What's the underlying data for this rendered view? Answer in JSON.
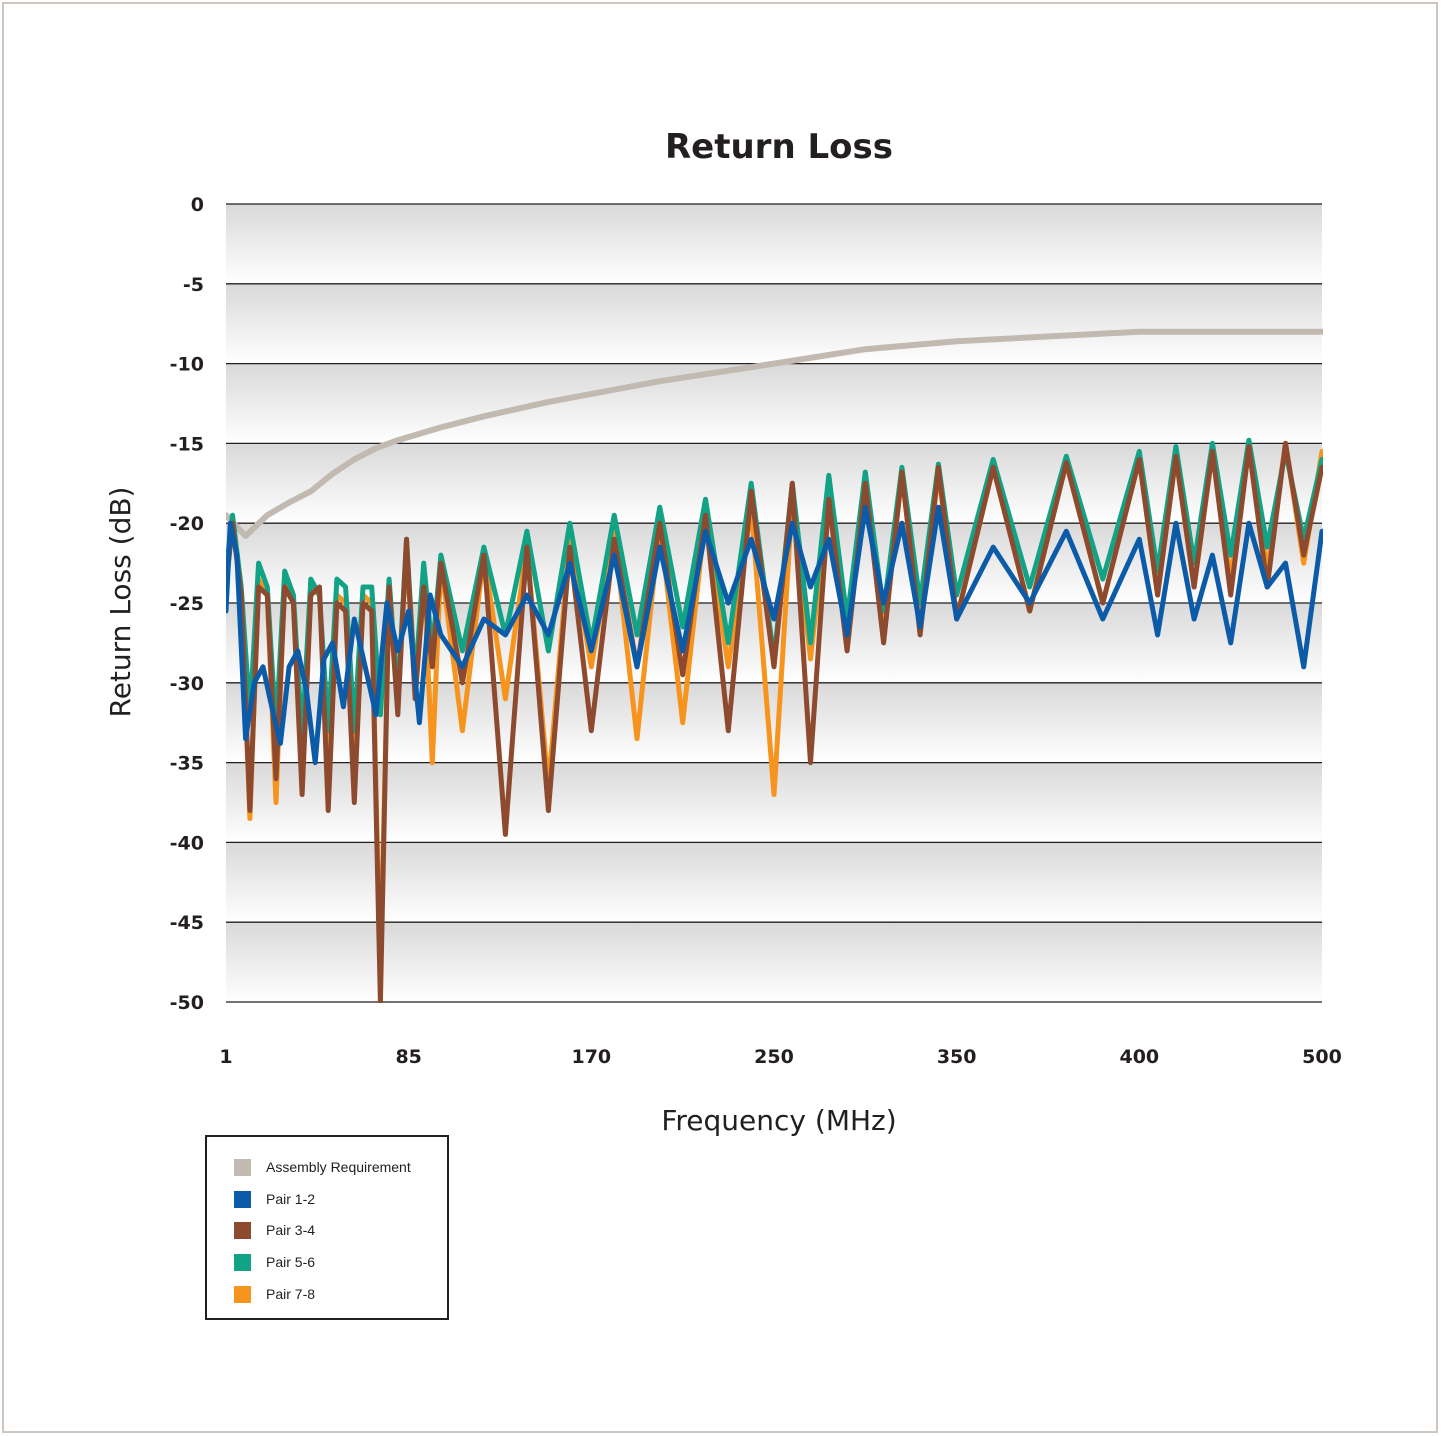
{
  "chart_data": {
    "type": "line",
    "title": "Return Loss",
    "xlabel": "Frequency (MHz)",
    "ylabel": "Return Loss (dB)",
    "x_ticks": [
      "1",
      "85",
      "170",
      "250",
      "350",
      "400",
      "500"
    ],
    "y_ticks": [
      "0",
      "-5",
      "-10",
      "-15",
      "-20",
      "-25",
      "-30",
      "-35",
      "-40",
      "-45",
      "-50"
    ],
    "ylim": [
      -50,
      0
    ],
    "xlim": [
      1,
      500
    ],
    "grid": true,
    "legend_position": "bottom-left",
    "series": [
      {
        "name": "Assembly Requirement",
        "color": "#c2bab1",
        "x": [
          1,
          10,
          20,
          30,
          40,
          50,
          60,
          70,
          80,
          100,
          120,
          150,
          200,
          250,
          300,
          350,
          400,
          500
        ],
        "y": [
          -19.5,
          -20.8,
          -19.5,
          -18.7,
          -18.0,
          -16.9,
          -16.0,
          -15.3,
          -14.8,
          -14.0,
          -13.3,
          -12.4,
          -11.1,
          -10.0,
          -9.1,
          -8.6,
          -8.0,
          -8.0
        ]
      },
      {
        "name": "Pair 1-2",
        "color": "#0b5ba8",
        "x": [
          1,
          3,
          6,
          10,
          14,
          18,
          22,
          26,
          30,
          34,
          38,
          42,
          46,
          50,
          55,
          60,
          65,
          70,
          75,
          80,
          85,
          90,
          95,
          100,
          110,
          120,
          130,
          140,
          150,
          160,
          170,
          180,
          190,
          200,
          210,
          220,
          230,
          240,
          250,
          260,
          270,
          280,
          290,
          300,
          310,
          320,
          330,
          340,
          350,
          360,
          370,
          380,
          390,
          400,
          410,
          420,
          430,
          440,
          450,
          460,
          470,
          480,
          490,
          500
        ],
        "y": [
          -25.5,
          -20.0,
          -22.0,
          -33.5,
          -30.0,
          -29.0,
          -31.5,
          -33.8,
          -29.0,
          -28.0,
          -30.5,
          -35.0,
          -28.5,
          -27.5,
          -31.5,
          -26.0,
          -29.0,
          -32.0,
          -25.0,
          -28.0,
          -25.5,
          -32.5,
          -24.5,
          -27.0,
          -29.0,
          -26.0,
          -27.0,
          -24.5,
          -27.0,
          -22.5,
          -28.0,
          -22.0,
          -29.0,
          -21.5,
          -28.0,
          -20.5,
          -25.0,
          -21.0,
          -26.0,
          -20.0,
          -24.0,
          -21.0,
          -27.0,
          -19.0,
          -25.0,
          -20.0,
          -26.5,
          -19.0,
          -26.0,
          -21.5,
          -25.0,
          -20.5,
          -26.0,
          -21.0,
          -27.0,
          -20.0,
          -26.0,
          -22.0,
          -27.5,
          -20.0,
          -24.0,
          -22.5,
          -29.0,
          -20.5
        ]
      },
      {
        "name": "Pair 3-4",
        "color": "#8e4a2e",
        "x": [
          1,
          4,
          8,
          12,
          16,
          20,
          24,
          28,
          32,
          36,
          40,
          44,
          48,
          52,
          56,
          60,
          64,
          68,
          72,
          76,
          80,
          84,
          88,
          92,
          96,
          100,
          110,
          120,
          130,
          140,
          150,
          160,
          170,
          180,
          190,
          200,
          210,
          220,
          230,
          240,
          250,
          260,
          270,
          280,
          290,
          300,
          310,
          320,
          330,
          340,
          350,
          360,
          370,
          380,
          390,
          400,
          410,
          420,
          430,
          440,
          450,
          460,
          470,
          480,
          490,
          500
        ],
        "y": [
          -24.0,
          -20.0,
          -24.5,
          -38.0,
          -24.0,
          -24.5,
          -36.0,
          -24.0,
          -25.0,
          -37.0,
          -24.5,
          -24.0,
          -38.0,
          -25.0,
          -25.5,
          -37.5,
          -25.0,
          -25.5,
          -50.0,
          -24.0,
          -32.0,
          -21.0,
          -31.0,
          -24.0,
          -29.0,
          -22.5,
          -30.0,
          -22.0,
          -39.5,
          -21.5,
          -38.0,
          -21.5,
          -33.0,
          -21.0,
          -29.0,
          -20.0,
          -29.5,
          -19.5,
          -33.0,
          -18.0,
          -29.0,
          -17.5,
          -35.0,
          -18.5,
          -28.0,
          -17.5,
          -27.5,
          -16.8,
          -27.0,
          -16.5,
          -26.0,
          -16.5,
          -25.5,
          -16.2,
          -25.0,
          -16.0,
          -24.5,
          -15.8,
          -24.0,
          -15.5,
          -24.5,
          -15.2,
          -24.0,
          -15.0,
          -22.0,
          -16.5
        ]
      },
      {
        "name": "Pair 5-6",
        "color": "#12a286",
        "x": [
          1,
          4,
          8,
          12,
          16,
          20,
          24,
          28,
          32,
          36,
          40,
          44,
          48,
          52,
          56,
          60,
          64,
          68,
          72,
          76,
          80,
          84,
          88,
          92,
          96,
          100,
          110,
          120,
          130,
          140,
          150,
          160,
          170,
          180,
          190,
          200,
          210,
          220,
          230,
          240,
          250,
          260,
          270,
          280,
          290,
          300,
          310,
          320,
          330,
          340,
          350,
          360,
          370,
          380,
          390,
          400,
          410,
          420,
          430,
          440,
          450,
          460,
          470,
          480,
          490,
          500
        ],
        "y": [
          -23.0,
          -19.5,
          -24.0,
          -32.0,
          -22.5,
          -24.0,
          -33.0,
          -23.0,
          -24.5,
          -33.5,
          -23.5,
          -24.5,
          -33.0,
          -23.5,
          -24.0,
          -33.0,
          -24.0,
          -24.0,
          -32.0,
          -23.5,
          -31.0,
          -21.0,
          -30.0,
          -22.5,
          -28.0,
          -22.0,
          -28.0,
          -21.5,
          -27.0,
          -20.5,
          -28.0,
          -20.0,
          -27.5,
          -19.5,
          -27.0,
          -19.0,
          -26.5,
          -18.5,
          -27.5,
          -17.5,
          -28.5,
          -17.5,
          -27.5,
          -17.0,
          -26.0,
          -16.8,
          -25.5,
          -16.5,
          -25.0,
          -16.3,
          -24.5,
          -16.0,
          -24.0,
          -15.8,
          -23.5,
          -15.5,
          -23.0,
          -15.2,
          -22.5,
          -15.0,
          -22.0,
          -14.8,
          -21.5,
          -15.5,
          -21.0,
          -16.0
        ]
      },
      {
        "name": "Pair 7-8",
        "color": "#f7941d",
        "x": [
          1,
          4,
          8,
          12,
          16,
          20,
          24,
          28,
          32,
          36,
          40,
          44,
          48,
          52,
          56,
          60,
          64,
          68,
          72,
          76,
          80,
          84,
          88,
          92,
          96,
          100,
          110,
          120,
          130,
          140,
          150,
          160,
          170,
          180,
          190,
          200,
          210,
          220,
          230,
          240,
          250,
          260,
          270,
          280,
          290,
          300,
          310,
          320,
          330,
          340,
          350,
          360,
          370,
          380,
          390,
          400,
          410,
          420,
          430,
          440,
          450,
          460,
          470,
          480,
          490,
          500
        ],
        "y": [
          -23.5,
          -20.0,
          -24.5,
          -38.5,
          -23.5,
          -24.5,
          -37.5,
          -23.5,
          -25.0,
          -35.5,
          -24.0,
          -24.5,
          -35.0,
          -24.5,
          -25.0,
          -36.0,
          -24.5,
          -25.0,
          -48.5,
          -24.0,
          -30.5,
          -22.0,
          -30.0,
          -23.0,
          -35.0,
          -22.5,
          -33.0,
          -22.0,
          -31.0,
          -21.5,
          -36.5,
          -21.0,
          -29.0,
          -20.5,
          -33.5,
          -20.0,
          -32.5,
          -19.5,
          -29.0,
          -19.0,
          -37.0,
          -18.5,
          -28.5,
          -18.0,
          -27.0,
          -17.5,
          -27.0,
          -17.0,
          -26.5,
          -16.8,
          -26.0,
          -16.5,
          -25.5,
          -16.2,
          -25.0,
          -16.0,
          -24.5,
          -15.8,
          -24.0,
          -15.5,
          -23.5,
          -15.2,
          -23.0,
          -15.0,
          -22.5,
          -15.5
        ]
      }
    ]
  }
}
